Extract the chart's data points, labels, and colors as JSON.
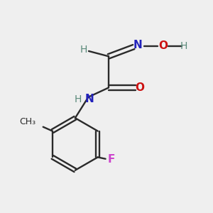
{
  "bg_color": "#efefef",
  "bond_color": "#2a2a2a",
  "N_color": "#2222bb",
  "O_color": "#cc1111",
  "F_color": "#cc44cc",
  "H_color": "#5a8a7a",
  "fig_size": [
    3.0,
    3.0
  ],
  "dpi": 100,
  "xlim": [
    0,
    10
  ],
  "ylim": [
    0,
    10
  ]
}
